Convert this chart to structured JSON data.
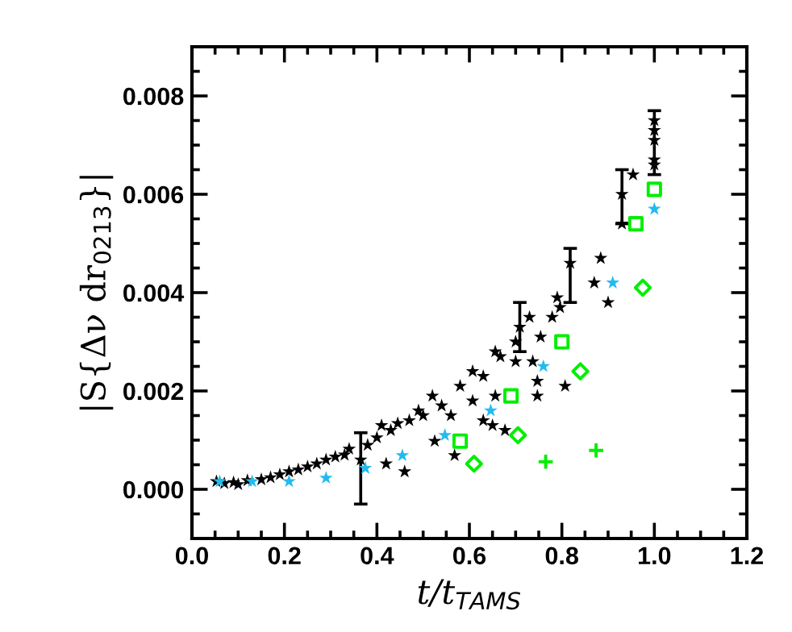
{
  "chart_data": {
    "type": "scatter",
    "xlabel": "t/t$_{TAMS}$",
    "ylabel": "|S{Δν dr$_{0213}$}|",
    "xlim": [
      0,
      1.2
    ],
    "ylim": [
      -0.001,
      0.009
    ],
    "xticks": [
      {
        "value": 0,
        "label": "0.0"
      },
      {
        "value": 0.2,
        "label": "0.2"
      },
      {
        "value": 0.4,
        "label": "0.4"
      },
      {
        "value": 0.6,
        "label": "0.6"
      },
      {
        "value": 0.8,
        "label": "0.8"
      },
      {
        "value": 1.0,
        "label": "1.0"
      },
      {
        "value": 1.2,
        "label": "1.2"
      }
    ],
    "yticks": [
      {
        "value": 0,
        "label": "0.000"
      },
      {
        "value": 0.002,
        "label": "0.002"
      },
      {
        "value": 0.004,
        "label": "0.004"
      },
      {
        "value": 0.006,
        "label": "0.006"
      },
      {
        "value": 0.008,
        "label": "0.008"
      }
    ],
    "grid": false,
    "legend": false,
    "series": [
      {
        "color": "#000000",
        "marker": "star",
        "x": [
          0.053,
          0.07,
          0.09,
          0.1,
          0.12,
          0.15,
          0.17,
          0.19,
          0.21,
          0.23,
          0.25,
          0.27,
          0.29,
          0.31,
          0.33,
          0.34,
          0.365,
          0.38,
          0.4,
          0.41,
          0.42,
          0.43,
          0.445,
          0.46,
          0.47,
          0.49,
          0.5,
          0.52,
          0.525,
          0.54,
          0.56,
          0.568,
          0.58,
          0.607,
          0.607,
          0.63,
          0.63,
          0.65,
          0.656,
          0.656,
          0.667,
          0.677,
          0.7,
          0.7,
          0.709,
          0.73,
          0.737,
          0.747,
          0.747,
          0.754,
          0.779,
          0.79,
          0.796,
          0.807,
          0.818,
          0.87,
          0.884,
          0.9,
          0.93,
          0.93,
          0.954,
          1.0,
          1.0,
          1.0,
          1.0,
          1.0
        ],
        "values": [
          0.00016,
          0.00012,
          0.00014,
          0.0001,
          0.00018,
          0.0002,
          0.00024,
          0.0003,
          0.00036,
          0.0004,
          0.00046,
          0.00052,
          0.0006,
          0.00066,
          0.0007,
          0.00082,
          0.0006,
          0.0009,
          0.00105,
          0.0013,
          0.00052,
          0.0012,
          0.00134,
          0.00036,
          0.0014,
          0.0016,
          0.0015,
          0.0019,
          0.00098,
          0.0017,
          0.0015,
          0.00069,
          0.0021,
          0.0024,
          0.0018,
          0.0023,
          0.0014,
          0.0013,
          0.0028,
          0.0019,
          0.0027,
          0.0012,
          0.003,
          0.0026,
          0.0033,
          0.0035,
          0.0026,
          0.0022,
          0.0019,
          0.0031,
          0.0035,
          0.0039,
          0.0037,
          0.0021,
          0.0046,
          0.0042,
          0.0047,
          0.0038,
          0.006,
          0.0054,
          0.0064,
          0.0075,
          0.0073,
          0.0071,
          0.0067,
          0.0066
        ],
        "errors": [
          null,
          null,
          null,
          null,
          null,
          null,
          null,
          null,
          null,
          null,
          null,
          null,
          null,
          null,
          null,
          null,
          [
            -0.0003,
            0.00115
          ],
          null,
          null,
          null,
          null,
          null,
          null,
          null,
          null,
          null,
          null,
          null,
          null,
          null,
          null,
          null,
          null,
          null,
          null,
          null,
          null,
          null,
          null,
          null,
          null,
          null,
          null,
          null,
          [
            0.0028,
            0.0038
          ],
          null,
          null,
          null,
          null,
          null,
          null,
          null,
          null,
          null,
          [
            0.0038,
            0.0049
          ],
          null,
          null,
          null,
          [
            0.0054,
            0.0065
          ],
          null,
          null,
          null,
          null,
          [
            0.0064,
            0.0077
          ],
          null,
          null
        ]
      },
      {
        "color": "#22bbee",
        "marker": "star",
        "x": [
          0.06,
          0.13,
          0.21,
          0.29,
          0.375,
          0.455,
          0.547,
          0.646,
          0.76,
          0.91,
          1.0
        ],
        "values": [
          0.00016,
          0.00016,
          0.00016,
          0.00023,
          0.00043,
          0.00069,
          0.0011,
          0.0016,
          0.0025,
          0.0042,
          0.0057
        ]
      },
      {
        "color": "#00ee00",
        "marker": "square",
        "x": [
          0.58,
          0.69,
          0.8,
          0.96,
          1.0
        ],
        "values": [
          0.00098,
          0.0019,
          0.003,
          0.0054,
          0.0061
        ]
      },
      {
        "color": "#00ee00",
        "marker": "diamond",
        "x": [
          0.61,
          0.705,
          0.84,
          0.975
        ],
        "values": [
          0.00052,
          0.0011,
          0.0024,
          0.0041
        ]
      },
      {
        "color": "#00ee00",
        "marker": "cross",
        "x": [
          0.765,
          0.874
        ],
        "values": [
          0.00056,
          0.00079
        ]
      }
    ]
  }
}
